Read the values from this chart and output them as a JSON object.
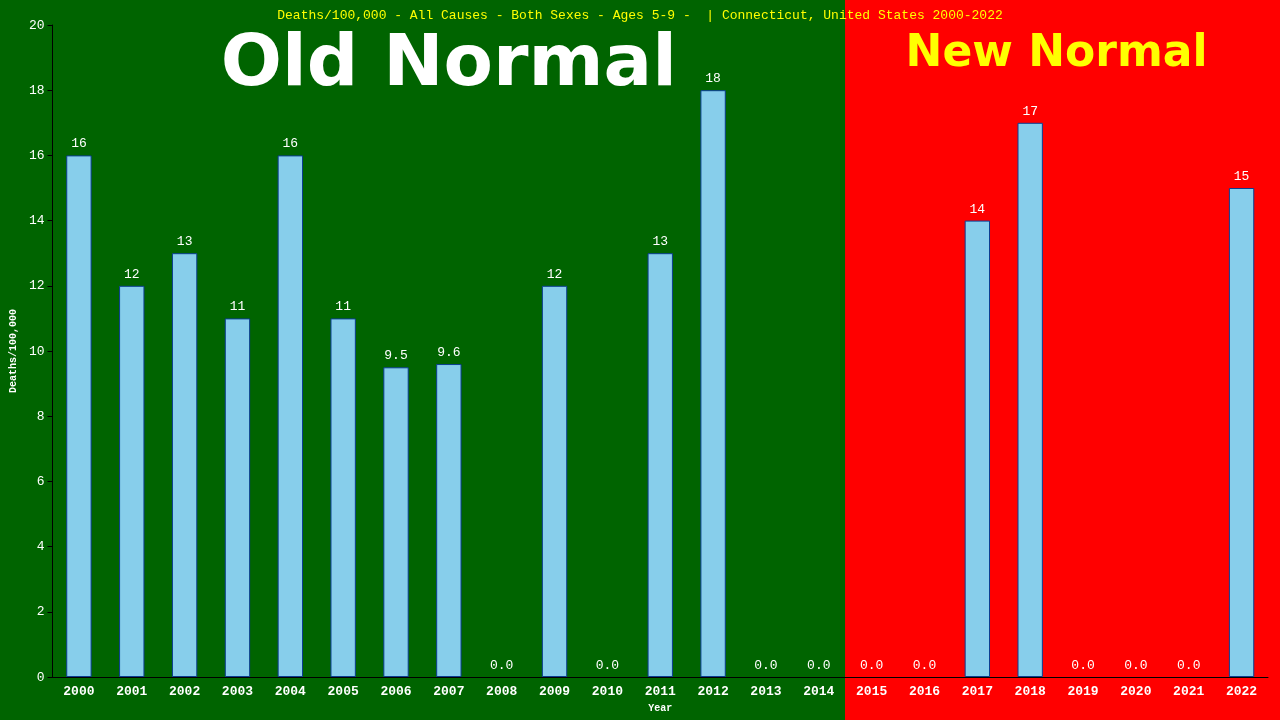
{
  "chart_data": {
    "type": "bar",
    "title": "Deaths/100,000 - All Causes - Both Sexes - Ages 5-9 -  | Connecticut, United States 2000-2022",
    "xlabel": "Year",
    "ylabel": "Deaths/100,000",
    "categories": [
      "2000",
      "2001",
      "2002",
      "2003",
      "2004",
      "2005",
      "2006",
      "2007",
      "2008",
      "2009",
      "2010",
      "2011",
      "2012",
      "2013",
      "2014",
      "2015",
      "2016",
      "2017",
      "2018",
      "2019",
      "2020",
      "2021",
      "2022"
    ],
    "values": [
      16,
      12,
      13,
      11,
      16,
      11,
      9.5,
      9.6,
      0,
      12,
      0,
      13,
      18,
      0,
      0,
      0,
      0,
      14,
      17,
      0,
      0,
      0,
      15
    ],
    "value_labels": [
      "16",
      "12",
      "13",
      "11",
      "16",
      "11",
      "9.5",
      "9.6",
      "0.0",
      "12",
      "0.0",
      "13",
      "18",
      "0.0",
      "0.0",
      "0.0",
      "0.0",
      "14",
      "17",
      "0.0",
      "0.0",
      "0.0",
      "15"
    ],
    "color": "#87ceeb",
    "ylim": [
      0,
      20
    ],
    "yticks": [
      0,
      2,
      4,
      6,
      8,
      10,
      12,
      14,
      16,
      18,
      20
    ],
    "grid": false,
    "bands": [
      {
        "axis": "x",
        "from": "2000",
        "to": "2014",
        "label": "Old Normal",
        "color": "#006400"
      },
      {
        "axis": "x",
        "from": "2015",
        "to": "2022",
        "label": "New Normal",
        "color": "#ff0000"
      }
    ]
  }
}
